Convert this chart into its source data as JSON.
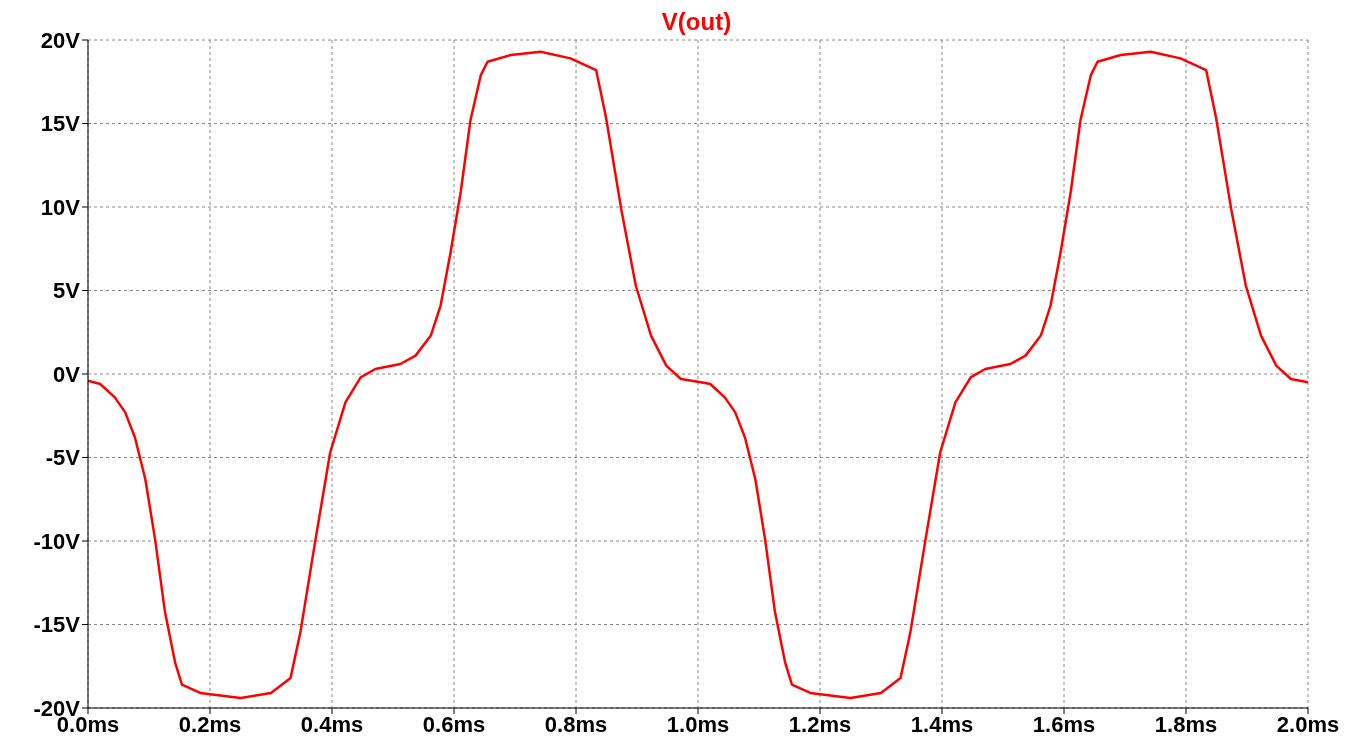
{
  "chart_data": {
    "type": "line",
    "title": "V(out)",
    "grid": true,
    "marker": "none",
    "line_style": "solid",
    "xlim": [
      0,
      2.0
    ],
    "ylim": [
      -20,
      20
    ],
    "xticks": [
      {
        "value": 0,
        "label": "0.0ms"
      },
      {
        "value": 0.2,
        "label": "0.2ms"
      },
      {
        "value": 0.4,
        "label": "0.4ms"
      },
      {
        "value": 0.6,
        "label": "0.6ms"
      },
      {
        "value": 0.8,
        "label": "0.8ms"
      },
      {
        "value": 1.0,
        "label": "1.0ms"
      },
      {
        "value": 1.2,
        "label": "1.2ms"
      },
      {
        "value": 1.4,
        "label": "1.4ms"
      },
      {
        "value": 1.6,
        "label": "1.6ms"
      },
      {
        "value": 1.8,
        "label": "1.8ms"
      },
      {
        "value": 2.0,
        "label": "2.0ms"
      }
    ],
    "yticks": [
      {
        "value": -20,
        "label": "-20V"
      },
      {
        "value": -15,
        "label": "-15V"
      },
      {
        "value": -10,
        "label": "-10V"
      },
      {
        "value": -5,
        "label": "-5V"
      },
      {
        "value": 0,
        "label": "0V"
      },
      {
        "value": 5,
        "label": "5V"
      },
      {
        "value": 10,
        "label": "10V"
      },
      {
        "value": 15,
        "label": "15V"
      },
      {
        "value": 20,
        "label": "20V"
      }
    ],
    "series": [
      {
        "color": "#ff0000",
        "x": [
          0,
          0.02,
          0.044,
          0.061,
          0.077,
          0.094,
          0.11,
          0.126,
          0.143,
          0.154,
          0.184,
          0.25,
          0.3,
          0.332,
          0.348,
          0.373,
          0.397,
          0.422,
          0.447,
          0.471,
          0.512,
          0.537,
          0.562,
          0.578,
          0.594,
          0.611,
          0.627,
          0.644,
          0.655,
          0.693,
          0.742,
          0.791,
          0.833,
          0.849,
          0.874,
          0.898,
          0.923,
          0.948,
          0.972,
          1.005,
          1.02,
          1.044,
          1.061,
          1.077,
          1.094,
          1.11,
          1.126,
          1.143,
          1.154,
          1.184,
          1.25,
          1.3,
          1.332,
          1.348,
          1.373,
          1.397,
          1.422,
          1.447,
          1.471,
          1.512,
          1.537,
          1.562,
          1.578,
          1.594,
          1.611,
          1.627,
          1.644,
          1.655,
          1.693,
          1.742,
          1.791,
          1.833,
          1.849,
          1.874,
          1.898,
          1.923,
          1.948,
          1.972,
          2.0
        ],
        "values": [
          -0.4,
          -0.6,
          -1.4,
          -2.3,
          -3.8,
          -6.3,
          -9.9,
          -14.2,
          -17.3,
          -18.6,
          -19.1,
          -19.4,
          -19.1,
          -18.2,
          -15.5,
          -9.9,
          -4.7,
          -1.7,
          -0.2,
          0.3,
          0.6,
          1.1,
          2.3,
          4.1,
          7.2,
          10.9,
          15.2,
          17.9,
          18.7,
          19.1,
          19.3,
          18.9,
          18.2,
          15.4,
          9.9,
          5.3,
          2.3,
          0.5,
          -0.3,
          -0.5,
          -0.6,
          -1.4,
          -2.3,
          -3.8,
          -6.3,
          -9.9,
          -14.2,
          -17.3,
          -18.6,
          -19.1,
          -19.4,
          -19.1,
          -18.2,
          -15.5,
          -9.9,
          -4.7,
          -1.7,
          -0.2,
          0.3,
          0.6,
          1.1,
          2.3,
          4.1,
          7.2,
          10.9,
          15.2,
          17.9,
          18.7,
          19.1,
          19.3,
          18.9,
          18.2,
          15.4,
          9.9,
          5.3,
          2.3,
          0.5,
          -0.3,
          -0.5
        ]
      }
    ]
  }
}
